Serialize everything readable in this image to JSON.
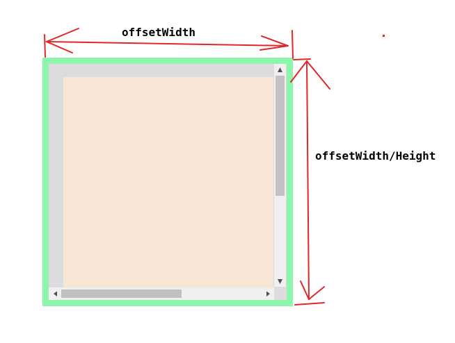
{
  "labels": {
    "top": "offsetWidth",
    "right": "offsetWidth/Height"
  },
  "colors": {
    "border": "#8ef5ad",
    "padding": "#dcdcdc",
    "content": "#f7e5d5",
    "track": "#f0f0f0",
    "thumb": "#c1c1c1",
    "arrow_glyph": "#505050",
    "annotation": "#e2262a",
    "text": "#000000"
  },
  "icons": {
    "scroll_up": "triangle-up-icon",
    "scroll_down": "triangle-down-icon",
    "scroll_left": "triangle-left-icon",
    "scroll_right": "triangle-right-icon"
  }
}
